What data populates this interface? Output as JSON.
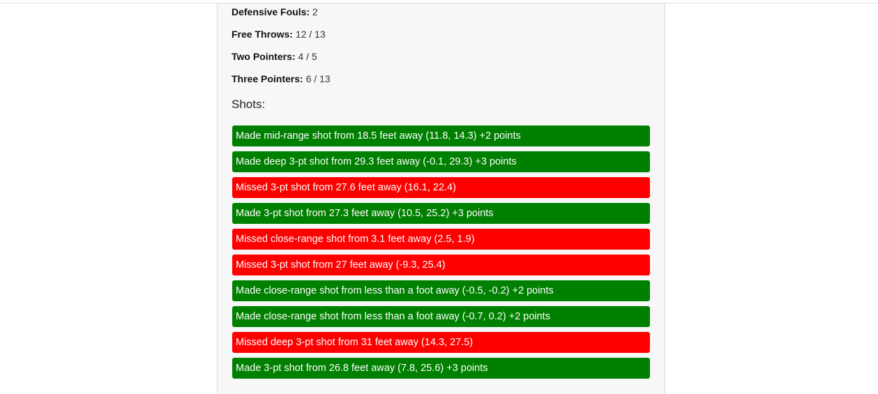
{
  "stats": {
    "defensive_fouls": {
      "label": "Defensive Fouls:",
      "value": "2"
    },
    "free_throws": {
      "label": "Free Throws:",
      "value": "12 / 13"
    },
    "two_pointers": {
      "label": "Two Pointers:",
      "value": "4 / 5"
    },
    "three_pointers": {
      "label": "Three Pointers:",
      "value": "6 / 13"
    }
  },
  "shots_heading": "Shots:",
  "colors": {
    "made": "#008000",
    "missed": "#ff0000"
  },
  "shots": [
    {
      "result": "made",
      "text": "Made mid-range shot from 18.5 feet away (11.8, 14.3) +2 points"
    },
    {
      "result": "made",
      "text": "Made deep 3-pt shot from 29.3 feet away (-0.1, 29.3) +3 points"
    },
    {
      "result": "missed",
      "text": "Missed 3-pt shot from 27.6 feet away (16.1, 22.4)"
    },
    {
      "result": "made",
      "text": "Made 3-pt shot from 27.3 feet away (10.5, 25.2) +3 points"
    },
    {
      "result": "missed",
      "text": "Missed close-range shot from 3.1 feet away (2.5, 1.9)"
    },
    {
      "result": "missed",
      "text": "Missed 3-pt shot from 27 feet away (-9.3, 25.4)"
    },
    {
      "result": "made",
      "text": "Made close-range shot from less than a foot away (-0.5, -0.2) +2 points"
    },
    {
      "result": "made",
      "text": "Made close-range shot from less than a foot away (-0.7, 0.2) +2 points"
    },
    {
      "result": "missed",
      "text": "Missed deep 3-pt shot from 31 feet away (14.3, 27.5)"
    },
    {
      "result": "made",
      "text": "Made 3-pt shot from 26.8 feet away (7.8, 25.6) +3 points"
    }
  ]
}
